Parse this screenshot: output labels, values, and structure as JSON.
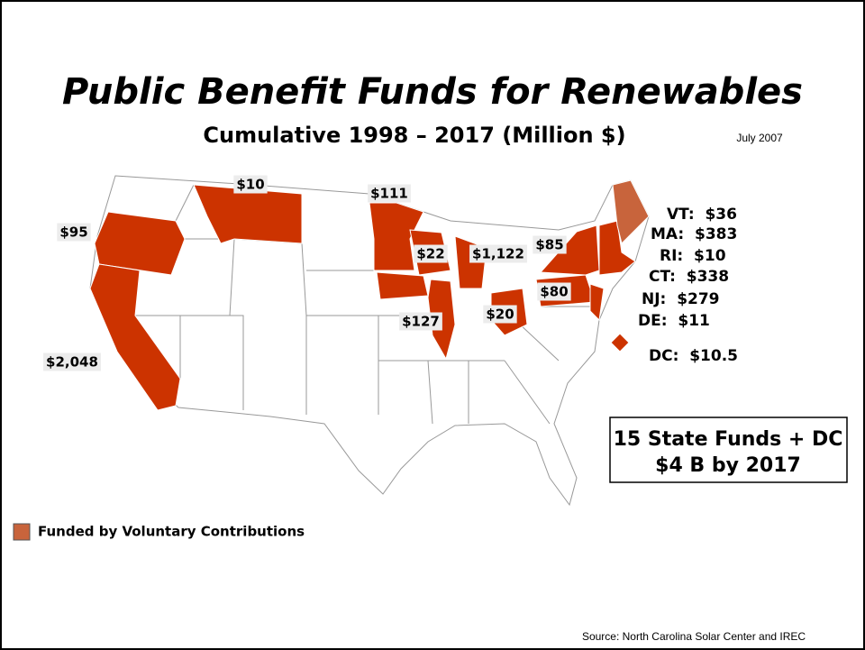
{
  "title": "Public Benefit Funds for Renewables",
  "subtitle": "Cumulative 1998 – 2017 (Million $)",
  "date": "July 2007",
  "map_labels": [
    "$10",
    "$111",
    "$95",
    "$2,048",
    "$22",
    "$1,122",
    "$85",
    "$127",
    "$20",
    "$80"
  ],
  "northeast": [
    "VT:  $36",
    "MA:  $383",
    "RI:  $10",
    "CT:  $338",
    "NJ:  $279",
    "DE:  $11",
    "DC:  $10.5"
  ],
  "summary": [
    "15 State Funds + DC",
    "$4 B by 2017"
  ],
  "legend": "Funded by Voluntary Contributions",
  "source": "Source: North Carolina Solar Center and IREC"
}
